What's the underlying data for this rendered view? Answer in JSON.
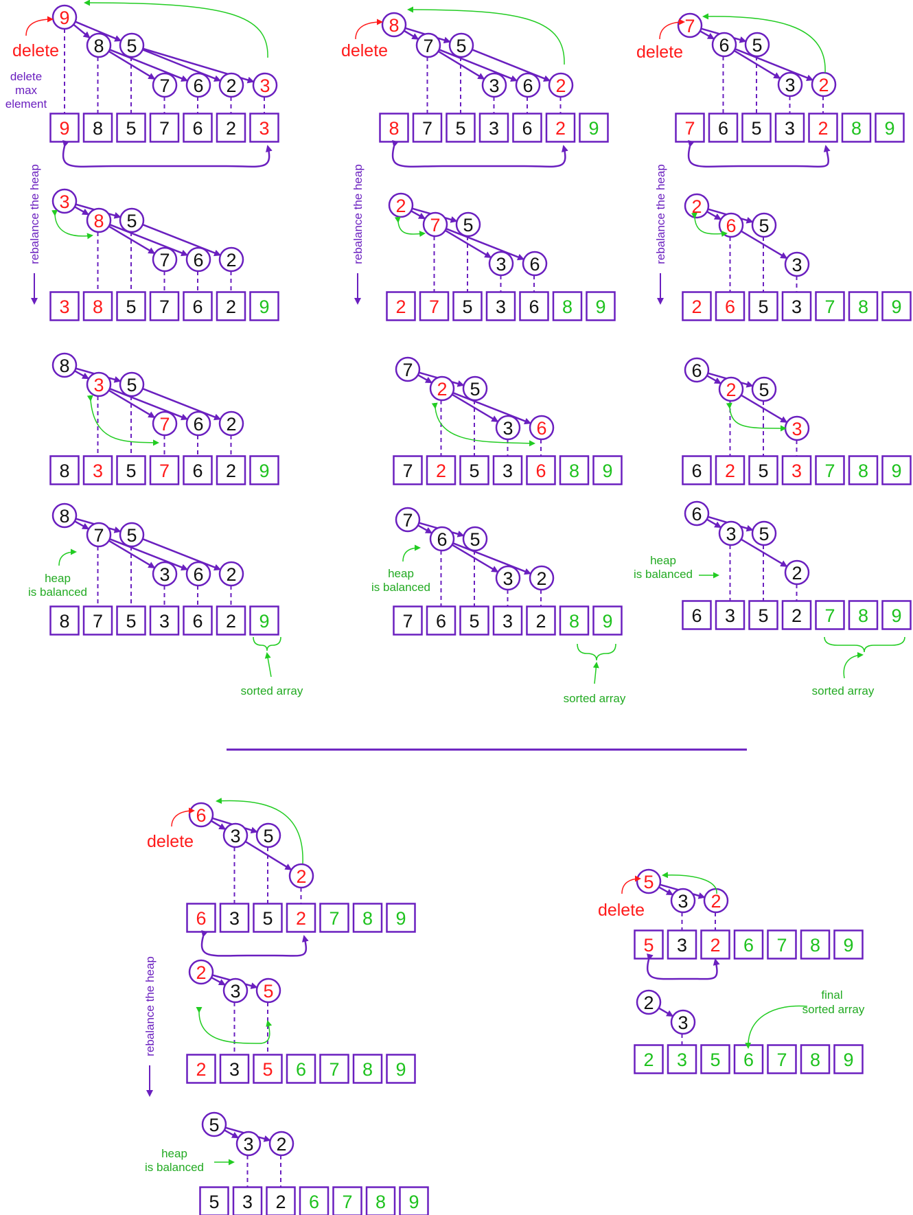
{
  "labels": {
    "delete": "delete",
    "delete_max_line1": "delete",
    "delete_max_line2": "max",
    "delete_max_line3": "element",
    "rebalance": "rebalance the heap",
    "heap_balanced_line1": "heap",
    "heap_balanced_line2": "is balanced",
    "sorted_array": "sorted array",
    "final_line1": "final",
    "final_line2": "sorted array"
  },
  "colors": {
    "structure": "#6a1fbf",
    "swap_highlight": "#ff1a1a",
    "sorted": "#1ec21e",
    "normal": "#111111",
    "arrow_green": "#22cc22"
  },
  "steps": [
    {
      "id": "s1-delete",
      "tree": [
        "9",
        "8",
        "5",
        "7",
        "6",
        "2",
        "3"
      ],
      "array": [
        "9",
        "8",
        "5",
        "7",
        "6",
        "2",
        "3"
      ],
      "highlight": [
        0,
        6
      ],
      "sorted_from": 7
    },
    {
      "id": "s1-swap1",
      "tree": [
        "3",
        "8",
        "5",
        "7",
        "6",
        "2"
      ],
      "array": [
        "3",
        "8",
        "5",
        "7",
        "6",
        "2",
        "9"
      ],
      "highlight": [
        0,
        1
      ],
      "sorted_from": 6
    },
    {
      "id": "s1-swap2",
      "tree": [
        "8",
        "3",
        "5",
        "7",
        "6",
        "2"
      ],
      "array": [
        "8",
        "3",
        "5",
        "7",
        "6",
        "2",
        "9"
      ],
      "highlight": [
        1,
        3
      ],
      "sorted_from": 6
    },
    {
      "id": "s1-balanced",
      "tree": [
        "8",
        "7",
        "5",
        "3",
        "6",
        "2"
      ],
      "array": [
        "8",
        "7",
        "5",
        "3",
        "6",
        "2",
        "9"
      ],
      "highlight": [],
      "sorted_from": 6
    },
    {
      "id": "s2-delete",
      "tree": [
        "8",
        "7",
        "5",
        "3",
        "6",
        "2"
      ],
      "array": [
        "8",
        "7",
        "5",
        "3",
        "6",
        "2",
        "9"
      ],
      "highlight": [
        0,
        5
      ],
      "sorted_from": 6
    },
    {
      "id": "s2-swap1",
      "tree": [
        "2",
        "7",
        "5",
        "3",
        "6"
      ],
      "array": [
        "2",
        "7",
        "5",
        "3",
        "6",
        "8",
        "9"
      ],
      "highlight": [
        0,
        1
      ],
      "sorted_from": 5
    },
    {
      "id": "s2-swap2",
      "tree": [
        "7",
        "2",
        "5",
        "3",
        "6"
      ],
      "array": [
        "7",
        "2",
        "5",
        "3",
        "6",
        "8",
        "9"
      ],
      "highlight": [
        1,
        4
      ],
      "sorted_from": 5
    },
    {
      "id": "s2-balanced",
      "tree": [
        "7",
        "6",
        "5",
        "3",
        "2"
      ],
      "array": [
        "7",
        "6",
        "5",
        "3",
        "2",
        "8",
        "9"
      ],
      "highlight": [],
      "sorted_from": 5
    },
    {
      "id": "s3-delete",
      "tree": [
        "7",
        "6",
        "5",
        "3",
        "2"
      ],
      "array": [
        "7",
        "6",
        "5",
        "3",
        "2",
        "8",
        "9"
      ],
      "highlight": [
        0,
        4
      ],
      "sorted_from": 5
    },
    {
      "id": "s3-swap1",
      "tree": [
        "2",
        "6",
        "5",
        "3"
      ],
      "array": [
        "2",
        "6",
        "5",
        "3",
        "7",
        "8",
        "9"
      ],
      "highlight": [
        0,
        1
      ],
      "sorted_from": 4
    },
    {
      "id": "s3-swap2",
      "tree": [
        "6",
        "2",
        "5",
        "3"
      ],
      "array": [
        "6",
        "2",
        "5",
        "3",
        "7",
        "8",
        "9"
      ],
      "highlight": [
        1,
        3
      ],
      "sorted_from": 4
    },
    {
      "id": "s3-balanced",
      "tree": [
        "6",
        "3",
        "5",
        "2"
      ],
      "array": [
        "6",
        "3",
        "5",
        "2",
        "7",
        "8",
        "9"
      ],
      "highlight": [],
      "sorted_from": 4
    },
    {
      "id": "s4-delete",
      "tree": [
        "6",
        "3",
        "5",
        "2"
      ],
      "array": [
        "6",
        "3",
        "5",
        "2",
        "7",
        "8",
        "9"
      ],
      "highlight": [
        0,
        3
      ],
      "sorted_from": 4
    },
    {
      "id": "s4-swap",
      "tree": [
        "2",
        "3",
        "5"
      ],
      "array": [
        "2",
        "3",
        "5",
        "6",
        "7",
        "8",
        "9"
      ],
      "highlight": [
        0,
        2
      ],
      "sorted_from": 3
    },
    {
      "id": "s4-balanced",
      "tree": [
        "5",
        "3",
        "2"
      ],
      "array": [
        "5",
        "3",
        "2",
        "6",
        "7",
        "8",
        "9"
      ],
      "highlight": [],
      "sorted_from": 3
    },
    {
      "id": "s5-delete",
      "tree": [
        "5",
        "3",
        "2"
      ],
      "array": [
        "5",
        "3",
        "2",
        "6",
        "7",
        "8",
        "9"
      ],
      "highlight": [
        0,
        2
      ],
      "sorted_from": 3
    },
    {
      "id": "s5-final-tree",
      "tree": [
        "2",
        "3"
      ],
      "array": [
        "2",
        "3",
        "5",
        "6",
        "7",
        "8",
        "9"
      ],
      "highlight": [],
      "sorted_from": 0
    }
  ]
}
